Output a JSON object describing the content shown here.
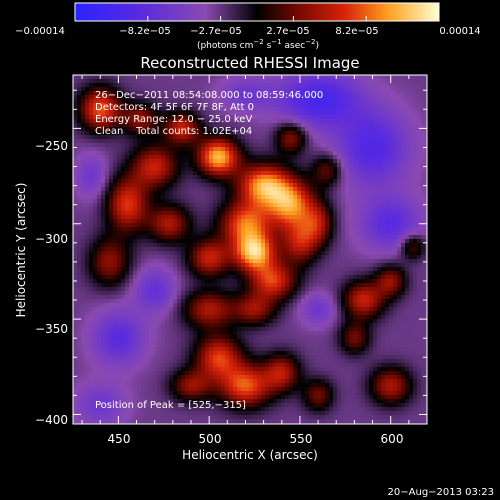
{
  "colorbar": {
    "ticks": [
      "−0.00014",
      "−8.2e−05",
      "−2.7e−05",
      "2.7e−05",
      "8.2e−05",
      "0.00014"
    ],
    "unit_main": "(photons cm",
    "unit_sup1": "−2",
    "unit_mid1": " s",
    "unit_sup2": "−1",
    "unit_mid2": " asec",
    "unit_sup3": "−2",
    "unit_end": ")",
    "range": [
      -0.00014,
      0.00014
    ]
  },
  "chart_data": {
    "type": "heatmap",
    "title": "Reconstructed RHESSI Image",
    "xlabel": "Heliocentric X (arcsec)",
    "ylabel": "Heliocentric Y (arcsec)",
    "xlim": [
      425,
      620
    ],
    "ylim": [
      -405,
      -222
    ],
    "x_ticks": [
      450,
      500,
      550,
      600
    ],
    "y_ticks": [
      -250,
      -300,
      -350,
      -400
    ],
    "x_tick_labels": [
      "450",
      "500",
      "550",
      "600"
    ],
    "y_tick_labels": [
      "−250",
      "−300",
      "−350",
      "−400"
    ],
    "peak": [
      525,
      -315
    ],
    "annotations": {
      "time": "26−Dec−2011 08:54:08.000 to 08:59:46.000",
      "detectors": "Detectors: 4F 5F 6F 7F 8F, Att 0",
      "energy": "Energy Range: 12.0 − 25.0 keV",
      "clean": "Clean    Total counts: 1.02E+04",
      "peak_label": "Position of Peak = [525,−315]"
    },
    "blobs": [
      {
        "x": 505,
        "y": -265,
        "v": 0.00014,
        "sx": 8,
        "sy": 7
      },
      {
        "x": 530,
        "y": -280,
        "v": 0.00013,
        "sx": 10,
        "sy": 8
      },
      {
        "x": 545,
        "y": -290,
        "v": 0.00012,
        "sx": 9,
        "sy": 9
      },
      {
        "x": 520,
        "y": -300,
        "v": 0.00011,
        "sx": 10,
        "sy": 8
      },
      {
        "x": 525,
        "y": -315,
        "v": 0.00014,
        "sx": 8,
        "sy": 7
      },
      {
        "x": 500,
        "y": -318,
        "v": 9e-05,
        "sx": 8,
        "sy": 7
      },
      {
        "x": 535,
        "y": -330,
        "v": 0.0001,
        "sx": 9,
        "sy": 7
      },
      {
        "x": 550,
        "y": -310,
        "v": 8e-05,
        "sx": 7,
        "sy": 8
      },
      {
        "x": 470,
        "y": -270,
        "v": 9e-05,
        "sx": 9,
        "sy": 8
      },
      {
        "x": 455,
        "y": -290,
        "v": 0.0001,
        "sx": 8,
        "sy": 10
      },
      {
        "x": 478,
        "y": -300,
        "v": 8e-05,
        "sx": 8,
        "sy": 7
      },
      {
        "x": 440,
        "y": -240,
        "v": 0.00011,
        "sx": 8,
        "sy": 8
      },
      {
        "x": 462,
        "y": -245,
        "v": 7e-05,
        "sx": 7,
        "sy": 6
      },
      {
        "x": 485,
        "y": -250,
        "v": 9e-05,
        "sx": 7,
        "sy": 6
      },
      {
        "x": 445,
        "y": -320,
        "v": 7e-05,
        "sx": 8,
        "sy": 9
      },
      {
        "x": 500,
        "y": -345,
        "v": 8e-05,
        "sx": 10,
        "sy": 7
      },
      {
        "x": 525,
        "y": -345,
        "v": 7e-05,
        "sx": 8,
        "sy": 6
      },
      {
        "x": 505,
        "y": -370,
        "v": 0.0001,
        "sx": 9,
        "sy": 8
      },
      {
        "x": 520,
        "y": -385,
        "v": 0.00011,
        "sx": 10,
        "sy": 8
      },
      {
        "x": 540,
        "y": -378,
        "v": 8e-05,
        "sx": 7,
        "sy": 7
      },
      {
        "x": 490,
        "y": -385,
        "v": 7e-05,
        "sx": 8,
        "sy": 6
      },
      {
        "x": 545,
        "y": -255,
        "v": 7e-05,
        "sx": 6,
        "sy": 6
      },
      {
        "x": 565,
        "y": -272,
        "v": 6e-05,
        "sx": 6,
        "sy": 6
      },
      {
        "x": 560,
        "y": -300,
        "v": 7e-05,
        "sx": 6,
        "sy": 8
      },
      {
        "x": 585,
        "y": -340,
        "v": 9e-05,
        "sx": 8,
        "sy": 7
      },
      {
        "x": 600,
        "y": -330,
        "v": 7e-05,
        "sx": 6,
        "sy": 6
      },
      {
        "x": 580,
        "y": -360,
        "v": 6e-05,
        "sx": 6,
        "sy": 6
      },
      {
        "x": 600,
        "y": -385,
        "v": 8e-05,
        "sx": 8,
        "sy": 7
      },
      {
        "x": 612,
        "y": -312,
        "v": 6e-05,
        "sx": 5,
        "sy": 5
      },
      {
        "x": 560,
        "y": -390,
        "v": 6e-05,
        "sx": 6,
        "sy": 6
      },
      {
        "x": 450,
        "y": -360,
        "v": -6e-05,
        "sx": 10,
        "sy": 10
      },
      {
        "x": 470,
        "y": -335,
        "v": -5e-05,
        "sx": 8,
        "sy": 8
      },
      {
        "x": 560,
        "y": -235,
        "v": -8e-05,
        "sx": 16,
        "sy": 10
      },
      {
        "x": 590,
        "y": -260,
        "v": -7e-05,
        "sx": 14,
        "sy": 14
      },
      {
        "x": 600,
        "y": -300,
        "v": -6e-05,
        "sx": 12,
        "sy": 10
      },
      {
        "x": 440,
        "y": -395,
        "v": -4e-05,
        "sx": 10,
        "sy": 8
      },
      {
        "x": 560,
        "y": -345,
        "v": -4e-05,
        "sx": 7,
        "sy": 6
      },
      {
        "x": 520,
        "y": -232,
        "v": -4e-05,
        "sx": 10,
        "sy": 6
      },
      {
        "x": 435,
        "y": -275,
        "v": -4e-05,
        "sx": 6,
        "sy": 8
      }
    ],
    "background_level": -3e-05
  },
  "footer": {
    "date": "20−Aug−2013 03:23"
  }
}
